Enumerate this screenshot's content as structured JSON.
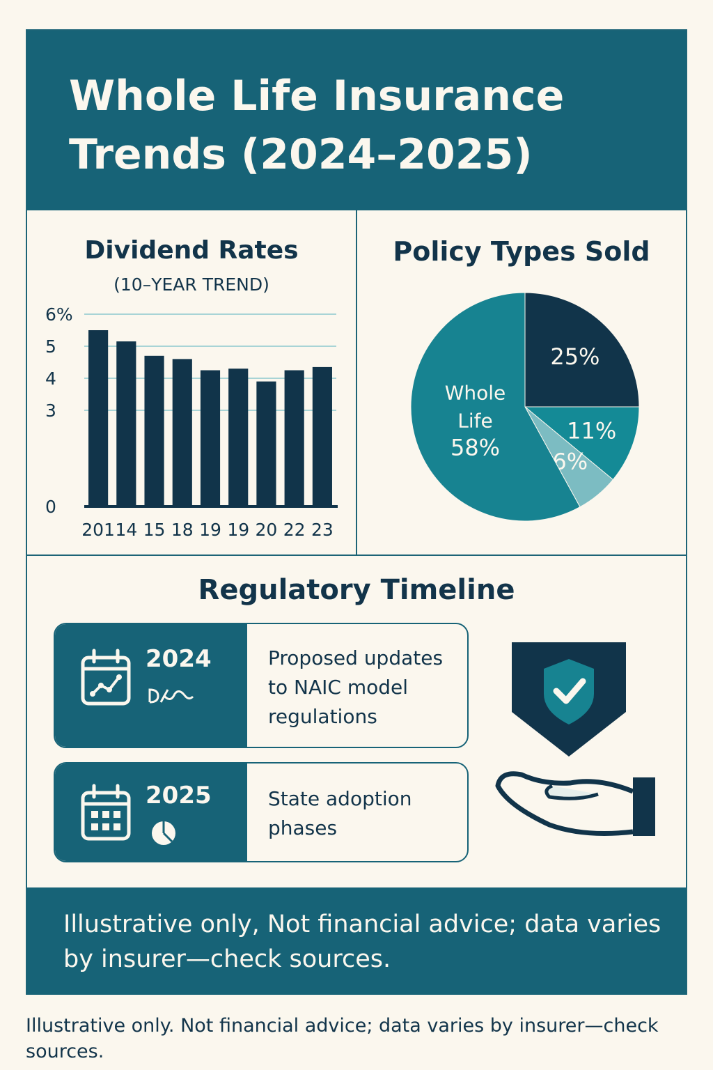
{
  "header": {
    "title": "Whole Life Insurance Trends (2024–2025)"
  },
  "chart_data": [
    {
      "type": "bar",
      "title": "Dividend Rates",
      "subtitle": "(10–YEAR TREND)",
      "categories": [
        "201",
        "14",
        "15",
        "18",
        "19",
        "19",
        "20",
        "22",
        "23"
      ],
      "values": [
        5.5,
        5.15,
        4.7,
        4.6,
        4.25,
        4.3,
        3.9,
        4.25,
        4.35
      ],
      "ytick_labels": [
        "0",
        "3",
        "4",
        "5",
        "6%"
      ],
      "ytick_values": [
        0,
        3,
        4,
        5,
        6
      ],
      "ylim": [
        0,
        6
      ],
      "grid": true,
      "color": "#11344a"
    },
    {
      "type": "pie",
      "title": "Policy Types Sold",
      "slices": [
        {
          "label": "",
          "value": 25,
          "value_label": "25%",
          "color": "#11344a"
        },
        {
          "label": "",
          "value": 11,
          "value_label": "11%",
          "color": "#148a96"
        },
        {
          "label": "",
          "value": 6,
          "value_label": "6%",
          "color": "#7cbcc2"
        },
        {
          "label": "Whole Life",
          "value": 58,
          "value_label": "58%",
          "color": "#178391"
        }
      ]
    }
  ],
  "timeline": {
    "title": "Regulatory Timeline",
    "items": [
      {
        "year": "2024",
        "text": "Proposed updates to NAIC model regulations",
        "icon": "calendar-chart-icon",
        "sub_icon": "scribble-icon"
      },
      {
        "year": "2025",
        "text": "State adoption phases",
        "icon": "calendar-grid-icon",
        "sub_icon": "pie-icon"
      }
    ]
  },
  "icons": {
    "shield": "shield-check-icon",
    "hand": "open-hand-icon"
  },
  "footer": {
    "note": "Illustrative only, Not financial advice; data varies by insurer—check sources."
  },
  "bottom_note": "Illustrative only. Not financial advice; data varies by insurer—check sources."
}
